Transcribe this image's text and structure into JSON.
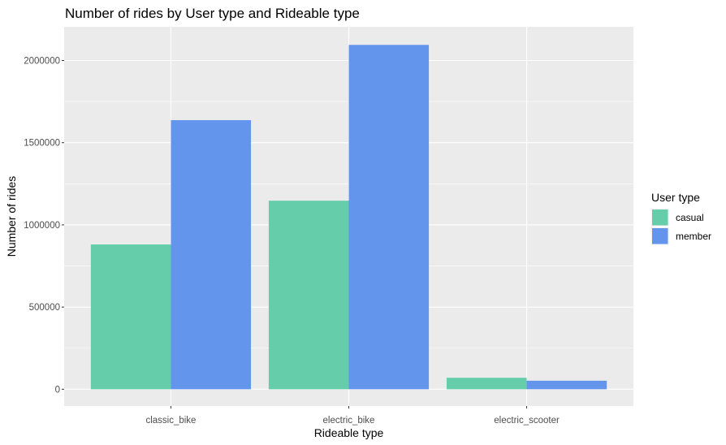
{
  "chart_data": {
    "type": "bar",
    "title": "Number of rides by User type and Rideable type",
    "xlabel": "Rideable type",
    "ylabel": "Number of rides",
    "categories": [
      "classic_bike",
      "electric_bike",
      "electric_scooter"
    ],
    "series": [
      {
        "name": "casual",
        "values": [
          881000,
          1147000,
          70000
        ],
        "color": "#66CDAA"
      },
      {
        "name": "member",
        "values": [
          1637000,
          2095000,
          52000
        ],
        "color": "#6495ED"
      }
    ],
    "ylim": [
      -102000,
      2205000
    ],
    "yticks": [
      0,
      500000,
      1000000,
      1500000,
      2000000
    ],
    "ytick_labels": [
      "0",
      "500000",
      "1000000",
      "1500000",
      "2000000"
    ],
    "grid": true,
    "panel_background": "#EBEBEB",
    "grid_color": "#FFFFFF",
    "legend": {
      "title": "User type",
      "position": "right"
    }
  }
}
